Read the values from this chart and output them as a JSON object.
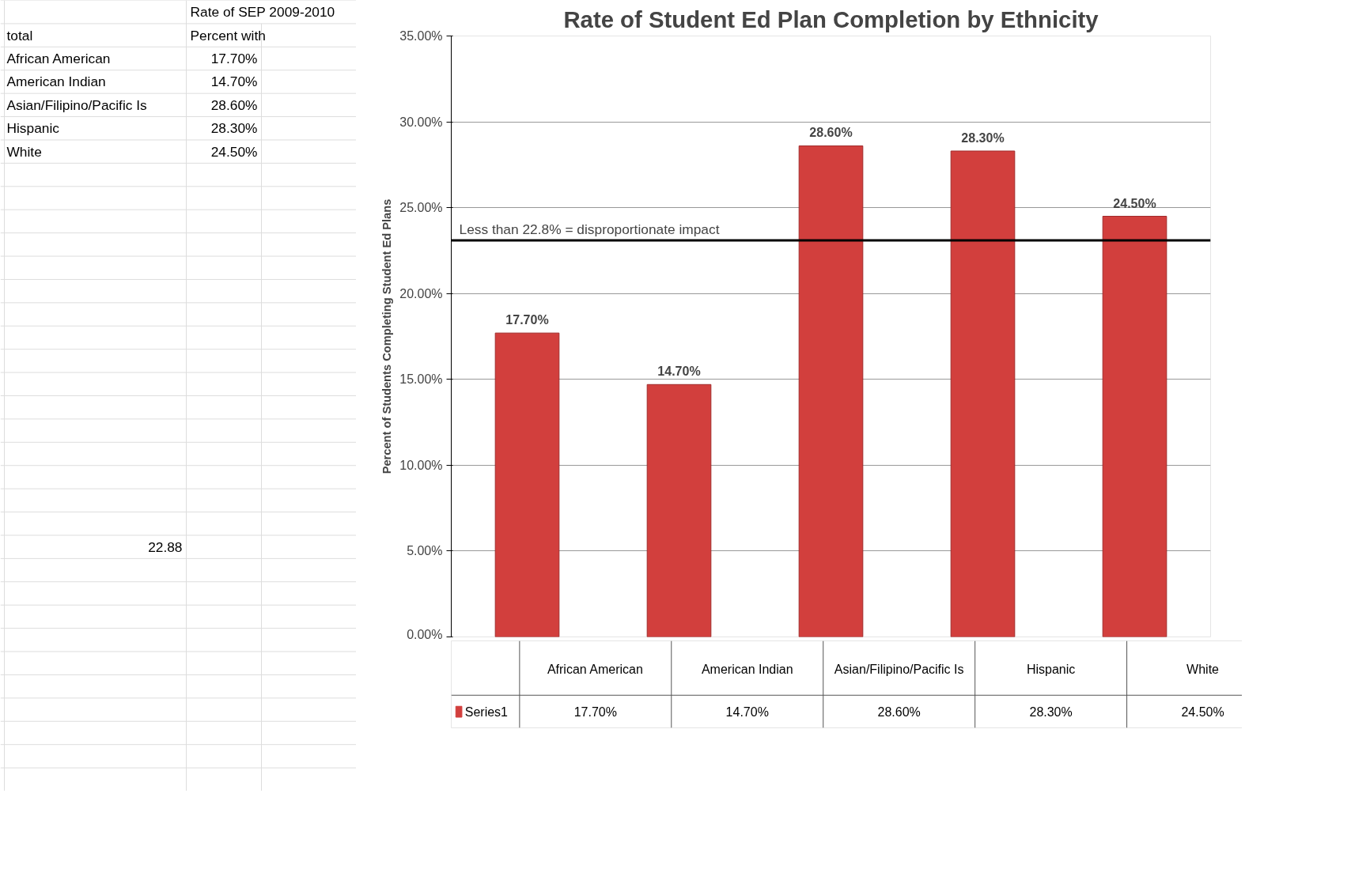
{
  "chart_data": {
    "type": "bar",
    "title": "Rate of Student Ed Plan Completion by Ethnicity",
    "ylabel": "Percent of Students Completing Student Ed Plans",
    "categories": [
      "African American",
      "American Indian",
      "Asian/Filipino/Pacific Is",
      "Hispanic",
      "White"
    ],
    "series": [
      {
        "name": "Series1",
        "color": "#d23f3d",
        "values": [
          17.7,
          14.7,
          28.6,
          28.3,
          24.5
        ]
      }
    ],
    "value_labels": [
      "17.70%",
      "14.70%",
      "28.60%",
      "28.30%",
      "24.50%"
    ],
    "ylim": [
      0,
      35
    ],
    "yticks": [
      {
        "value": 0,
        "label": "0.00%"
      },
      {
        "value": 5,
        "label": "5.00%"
      },
      {
        "value": 10,
        "label": "10.00%"
      },
      {
        "value": 15,
        "label": "15.00%"
      },
      {
        "value": 20,
        "label": "20.00%"
      },
      {
        "value": 25,
        "label": "25.00%"
      },
      {
        "value": 30,
        "label": "30.00%"
      },
      {
        "value": 35,
        "label": "35.00%"
      }
    ],
    "grid": "y",
    "legend": "bottom",
    "ref_lines": [
      {
        "axis": "y",
        "value": 23.1,
        "label": "Less than 22.8% = disproportionate impact",
        "color": "#000000"
      }
    ],
    "annotations": [
      "Rate of SEP 2009-2010",
      "total",
      "Percent with",
      "African American",
      "17.70%",
      "American Indian",
      "14.70%",
      "Asian/Filipino/Pacific Is",
      "28.60%",
      "Hispanic",
      "28.30%",
      "White",
      "24.50%",
      "22.88"
    ]
  }
}
